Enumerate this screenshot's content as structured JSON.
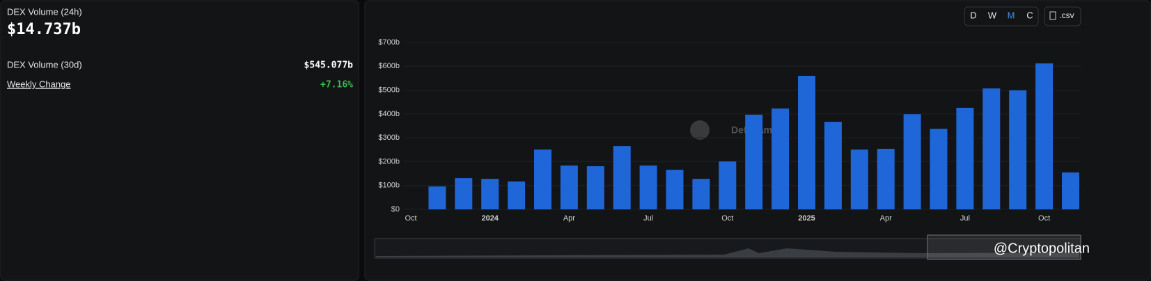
{
  "summary": {
    "label": "DEX Volume (24h)",
    "value": "$14.737b"
  },
  "metrics": [
    {
      "label": "DEX Volume (30d)",
      "value": "$545.077b"
    },
    {
      "label": "Weekly Change",
      "value": "+7.16%"
    }
  ],
  "controls": {
    "periods": [
      "D",
      "W",
      "M",
      "C"
    ],
    "active": "M",
    "download": ".csv"
  },
  "watermarks": [
    "DefiLlama",
    "@Cryptopolitan"
  ],
  "chart_data": {
    "type": "bar",
    "categories": [
      "Oct",
      null,
      null,
      "2024",
      null,
      null,
      "Apr",
      null,
      null,
      "Jul",
      null,
      null,
      "Oct",
      null,
      null,
      "2025",
      null,
      null,
      "Apr",
      null,
      null,
      "Jul",
      null,
      null,
      "Oct",
      null
    ],
    "values": [
      null,
      96,
      131,
      128,
      117,
      251,
      184,
      181,
      265,
      184,
      166,
      128,
      201,
      397,
      423,
      560,
      367,
      251,
      254,
      399,
      338,
      426,
      507,
      499,
      612,
      155
    ],
    "color": "#1f66d9",
    "ylim": [
      0,
      700
    ],
    "yticks": [
      {
        "value": 0,
        "label": "$0"
      },
      {
        "value": 100,
        "label": "$100b"
      },
      {
        "value": 200,
        "label": "$200b"
      },
      {
        "value": 300,
        "label": "$300b"
      },
      {
        "value": 400,
        "label": "$400b"
      },
      {
        "value": 500,
        "label": "$500b"
      },
      {
        "value": 600,
        "label": "$600b"
      },
      {
        "value": 700,
        "label": "$700b"
      }
    ],
    "grid": true
  }
}
